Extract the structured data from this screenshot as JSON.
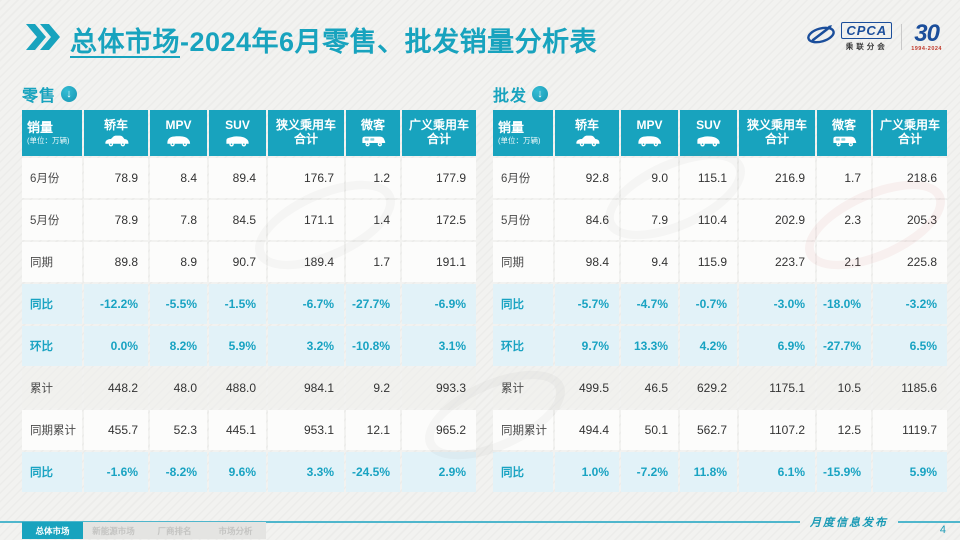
{
  "header": {
    "title_strong": "总体市场",
    "title_rest": "-2024年6月零售、批发销量分析表"
  },
  "logos": {
    "cpca": {
      "abbr": "CPCA",
      "name": "乘联分会"
    },
    "anniversary": {
      "number": "30",
      "years": "1994-2024"
    }
  },
  "colors": {
    "accent_teal": "#18A3BE",
    "percent_row_bg": "#E2F2F8",
    "percent_text": "#19A3C2",
    "logo_blue": "#1B4E9B",
    "anniversary_red": "#C0392B"
  },
  "tables": [
    {
      "id": "retail",
      "title": "零售",
      "corner": {
        "title": "销量",
        "unit": "(单位：万辆)"
      },
      "columns": [
        {
          "label": "轿车",
          "icon": "sedan-icon"
        },
        {
          "label": "MPV",
          "icon": "mpv-icon"
        },
        {
          "label": "SUV",
          "icon": "suv-icon"
        },
        {
          "label": "狭义乘用车 合计",
          "icon": ""
        },
        {
          "label": "微客",
          "icon": "microvan-icon"
        },
        {
          "label": "广义乘用车 合计",
          "icon": ""
        }
      ],
      "rows": [
        {
          "label": "6月份",
          "type": "value",
          "shaded": false,
          "values": [
            "78.9",
            "8.4",
            "89.4",
            "176.7",
            "1.2",
            "177.9"
          ]
        },
        {
          "label": "5月份",
          "type": "value",
          "shaded": false,
          "values": [
            "78.9",
            "7.8",
            "84.5",
            "171.1",
            "1.4",
            "172.5"
          ]
        },
        {
          "label": "同期",
          "type": "value",
          "shaded": false,
          "values": [
            "89.8",
            "8.9",
            "90.7",
            "189.4",
            "1.7",
            "191.1"
          ]
        },
        {
          "label": "同比",
          "type": "percent",
          "shaded": false,
          "values": [
            "-12.2%",
            "-5.5%",
            "-1.5%",
            "-6.7%",
            "-27.7%",
            "-6.9%"
          ]
        },
        {
          "label": "环比",
          "type": "percent",
          "shaded": false,
          "values": [
            "0.0%",
            "8.2%",
            "5.9%",
            "3.2%",
            "-10.8%",
            "3.1%"
          ]
        },
        {
          "label": "累计",
          "type": "value",
          "shaded": true,
          "values": [
            "448.2",
            "48.0",
            "488.0",
            "984.1",
            "9.2",
            "993.3"
          ]
        },
        {
          "label": "同期累计",
          "type": "value",
          "shaded": false,
          "values": [
            "455.7",
            "52.3",
            "445.1",
            "953.1",
            "12.1",
            "965.2"
          ]
        },
        {
          "label": "同比",
          "type": "percent",
          "shaded": false,
          "values": [
            "-1.6%",
            "-8.2%",
            "9.6%",
            "3.3%",
            "-24.5%",
            "2.9%"
          ]
        }
      ]
    },
    {
      "id": "wholesale",
      "title": "批发",
      "corner": {
        "title": "销量",
        "unit": "(单位：万辆)"
      },
      "columns": [
        {
          "label": "轿车",
          "icon": "sedan-icon"
        },
        {
          "label": "MPV",
          "icon": "mpv-icon"
        },
        {
          "label": "SUV",
          "icon": "suv-icon"
        },
        {
          "label": "狭义乘用车 合计",
          "icon": ""
        },
        {
          "label": "微客",
          "icon": "microvan-icon"
        },
        {
          "label": "广义乘用车 合计",
          "icon": ""
        }
      ],
      "rows": [
        {
          "label": "6月份",
          "type": "value",
          "shaded": false,
          "values": [
            "92.8",
            "9.0",
            "115.1",
            "216.9",
            "1.7",
            "218.6"
          ]
        },
        {
          "label": "5月份",
          "type": "value",
          "shaded": false,
          "values": [
            "84.6",
            "7.9",
            "110.4",
            "202.9",
            "2.3",
            "205.3"
          ]
        },
        {
          "label": "同期",
          "type": "value",
          "shaded": false,
          "values": [
            "98.4",
            "9.4",
            "115.9",
            "223.7",
            "2.1",
            "225.8"
          ]
        },
        {
          "label": "同比",
          "type": "percent",
          "shaded": false,
          "values": [
            "-5.7%",
            "-4.7%",
            "-0.7%",
            "-3.0%",
            "-18.0%",
            "-3.2%"
          ]
        },
        {
          "label": "环比",
          "type": "percent",
          "shaded": false,
          "values": [
            "9.7%",
            "13.3%",
            "4.2%",
            "6.9%",
            "-27.7%",
            "6.5%"
          ]
        },
        {
          "label": "累计",
          "type": "value",
          "shaded": true,
          "values": [
            "499.5",
            "46.5",
            "629.2",
            "1175.1",
            "10.5",
            "1185.6"
          ]
        },
        {
          "label": "同期累计",
          "type": "value",
          "shaded": false,
          "values": [
            "494.4",
            "50.1",
            "562.7",
            "1107.2",
            "12.5",
            "1119.7"
          ]
        },
        {
          "label": "同比",
          "type": "percent",
          "shaded": false,
          "values": [
            "1.0%",
            "-7.2%",
            "11.8%",
            "6.1%",
            "-15.9%",
            "5.9%"
          ]
        }
      ]
    }
  ],
  "footer": {
    "note": "月度信息发布",
    "page": "4",
    "tabs": [
      {
        "label": "总体市场",
        "active": true
      },
      {
        "label": "新能源市场",
        "active": false
      },
      {
        "label": "厂商排名",
        "active": false
      },
      {
        "label": "市场分析",
        "active": false
      }
    ]
  }
}
